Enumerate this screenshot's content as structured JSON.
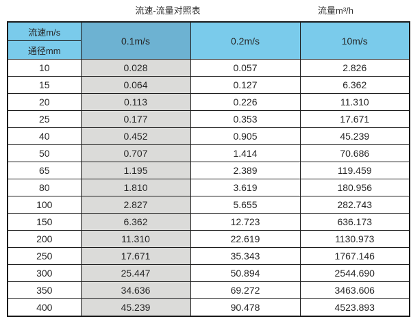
{
  "page": {
    "title_left": "流速-流量对照表",
    "title_right": "流量m³/h"
  },
  "table": {
    "corner_top_label": "流速m/s",
    "corner_bottom_label": "通径mm",
    "velocity_headers": [
      "0.1m/s",
      "0.2m/s",
      "10m/s"
    ],
    "rows": [
      {
        "dn": "10",
        "values": [
          "0.028",
          "0.057",
          "2.826"
        ]
      },
      {
        "dn": "15",
        "values": [
          "0.064",
          "0.127",
          "6.362"
        ]
      },
      {
        "dn": "20",
        "values": [
          "0.113",
          "0.226",
          "11.310"
        ]
      },
      {
        "dn": "25",
        "values": [
          "0.177",
          "0.353",
          "17.671"
        ]
      },
      {
        "dn": "40",
        "values": [
          "0.452",
          "0.905",
          "45.239"
        ]
      },
      {
        "dn": "50",
        "values": [
          "0.707",
          "1.414",
          "70.686"
        ]
      },
      {
        "dn": "65",
        "values": [
          "1.195",
          "2.389",
          "119.459"
        ]
      },
      {
        "dn": "80",
        "values": [
          "1.810",
          "3.619",
          "180.956"
        ]
      },
      {
        "dn": "100",
        "values": [
          "2.827",
          "5.655",
          "282.743"
        ]
      },
      {
        "dn": "150",
        "values": [
          "6.362",
          "12.723",
          "636.173"
        ]
      },
      {
        "dn": "200",
        "values": [
          "11.310",
          "22.619",
          "1130.973"
        ]
      },
      {
        "dn": "250",
        "values": [
          "17.671",
          "35.343",
          "1767.146"
        ]
      },
      {
        "dn": "300",
        "values": [
          "25.447",
          "50.894",
          "2544.690"
        ]
      },
      {
        "dn": "350",
        "values": [
          "34.636",
          "69.272",
          "3463.606"
        ]
      },
      {
        "dn": "400",
        "values": [
          "45.239",
          "90.478",
          "4523.893"
        ]
      }
    ]
  },
  "colors": {
    "headerBlue": "#7acbeb",
    "headerBlueDark": "#6db2d2",
    "colGray": "#dbdbd9",
    "border": "#1a1a1a",
    "text": "#262626",
    "bg": "#ffffff"
  },
  "chart_data": {
    "type": "table",
    "title": "流速-流量对照表",
    "unit_label": "流量m³/h",
    "columns": [
      "通径mm",
      "0.1m/s",
      "0.2m/s",
      "10m/s"
    ],
    "row_header_label": "流速m/s",
    "rows": [
      [
        10,
        0.028,
        0.057,
        2.826
      ],
      [
        15,
        0.064,
        0.127,
        6.362
      ],
      [
        20,
        0.113,
        0.226,
        11.31
      ],
      [
        25,
        0.177,
        0.353,
        17.671
      ],
      [
        40,
        0.452,
        0.905,
        45.239
      ],
      [
        50,
        0.707,
        1.414,
        70.686
      ],
      [
        65,
        1.195,
        2.389,
        119.459
      ],
      [
        80,
        1.81,
        3.619,
        180.956
      ],
      [
        100,
        2.827,
        5.655,
        282.743
      ],
      [
        150,
        6.362,
        12.723,
        636.173
      ],
      [
        200,
        11.31,
        22.619,
        1130.973
      ],
      [
        250,
        17.671,
        35.343,
        1767.146
      ],
      [
        300,
        25.447,
        50.894,
        2544.69
      ],
      [
        350,
        34.636,
        69.272,
        3463.606
      ],
      [
        400,
        45.239,
        90.478,
        4523.893
      ]
    ]
  }
}
